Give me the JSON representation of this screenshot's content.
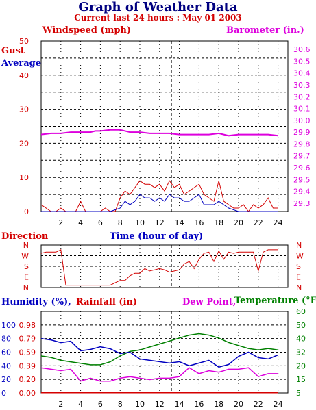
{
  "title": "Graph of Weather Data",
  "subtitle": "Current last 24 hours : May 01 2003",
  "colors": {
    "windspeed": "#d40000",
    "average": "#0000c0",
    "barometer": "#dd00dd",
    "direction": "#d40000",
    "humidity": "#0000c0",
    "rainfall": "#d40000",
    "dewpoint": "#dd00dd",
    "temperature": "#008000",
    "title": "#000080"
  },
  "chart_data": [
    {
      "type": "line",
      "name": "wind",
      "ylabel_left": "Windspeed (mph)",
      "ylabel_right": "Barometer (in.)",
      "legend_gust": "Gust",
      "legend_average": "Average",
      "xlabel": "Time (hour of day)",
      "x_ticks": [
        "2",
        "4",
        "6",
        "8",
        "10",
        "12",
        "14",
        "16",
        "18",
        "20",
        "22",
        "24"
      ],
      "xlim": [
        0,
        25
      ],
      "y_left_ticks": [
        "0",
        "10",
        "20",
        "30",
        "40",
        "50"
      ],
      "ylim_left": [
        0,
        50
      ],
      "y_right_ticks": [
        "29.3",
        "29.4",
        "29.5",
        "29.6",
        "29.7",
        "29.8",
        "29.9",
        "30.0",
        "30.1",
        "30.2",
        "30.3",
        "30.4",
        "30.5",
        "30.6"
      ],
      "ylim_right": [
        29.23,
        30.67
      ],
      "grid": true,
      "current_hour": 13.2,
      "barometer": {
        "x": [
          0,
          1,
          2,
          3,
          4,
          5,
          5.5,
          6,
          7,
          8,
          9,
          10,
          11,
          12,
          13,
          14,
          15,
          16,
          17,
          18,
          19,
          20,
          21,
          22,
          23,
          24
        ],
        "y": [
          29.88,
          29.89,
          29.89,
          29.9,
          29.9,
          29.9,
          29.91,
          29.91,
          29.92,
          29.92,
          29.9,
          29.9,
          29.89,
          29.89,
          29.89,
          29.88,
          29.88,
          29.88,
          29.88,
          29.89,
          29.87,
          29.88,
          29.88,
          29.88,
          29.88,
          29.87
        ]
      },
      "gust": {
        "x": [
          0,
          0.5,
          1,
          1.5,
          2,
          2.5,
          3,
          3.5,
          4,
          4.5,
          5,
          5.5,
          6,
          6.5,
          7,
          7.5,
          8,
          8.5,
          9,
          9.5,
          10,
          10.5,
          11,
          11.5,
          12,
          12.5,
          13,
          13.5,
          14,
          14.5,
          15,
          15.5,
          16,
          16.5,
          17,
          17.5,
          18,
          18.5,
          19,
          19.5,
          20,
          20.5,
          21,
          21.5,
          22,
          22.5,
          23,
          23.5,
          24
        ],
        "y": [
          2,
          1,
          0,
          0,
          1,
          0,
          0,
          0,
          3,
          0,
          0,
          0,
          0,
          1,
          0,
          0,
          4,
          6,
          5,
          7,
          9,
          8,
          8,
          7,
          8,
          6,
          9,
          7,
          8,
          5,
          6,
          7,
          8,
          5,
          4,
          3,
          9,
          3,
          2,
          1,
          1,
          2,
          0,
          2,
          1,
          2,
          4,
          1,
          1
        ]
      },
      "average": {
        "x": [
          0,
          1,
          2,
          3,
          4,
          5,
          6,
          7,
          8,
          8.5,
          9,
          9.5,
          10,
          10.5,
          11,
          11.5,
          12,
          12.5,
          13,
          13.5,
          14,
          14.5,
          15,
          15.5,
          16,
          16.5,
          17,
          17.5,
          18,
          19,
          20,
          21,
          22,
          23,
          24
        ],
        "y": [
          0,
          0,
          0,
          0,
          0,
          0,
          0,
          0,
          1,
          3,
          2,
          3,
          5,
          4,
          4,
          3,
          4,
          3,
          5,
          4,
          4,
          3,
          3,
          4,
          5,
          2,
          2,
          2,
          3,
          1,
          0,
          0,
          0,
          0,
          0
        ]
      }
    },
    {
      "type": "line",
      "name": "direction",
      "ylabel": "Direction",
      "y_ticks": [
        "N",
        "W",
        "S",
        "E",
        "N"
      ],
      "ylim": [
        0,
        360
      ],
      "grid": true,
      "x": [
        0,
        0.5,
        1,
        1.5,
        2,
        2.5,
        3,
        3.5,
        4,
        4.5,
        5,
        5.5,
        6,
        6.5,
        7,
        7.5,
        8,
        8.5,
        9,
        9.5,
        10,
        10.5,
        11,
        11.5,
        12,
        12.5,
        13,
        13.5,
        14,
        14.5,
        15,
        15.5,
        16,
        16.5,
        17,
        17.5,
        18,
        18.5,
        19,
        19.5,
        20,
        20.5,
        21,
        21.5,
        22,
        22.5,
        23,
        23.5,
        24
      ],
      "y": [
        290,
        300,
        300,
        300,
        320,
        20,
        20,
        20,
        20,
        20,
        20,
        20,
        20,
        20,
        20,
        40,
        60,
        60,
        100,
        120,
        120,
        160,
        140,
        150,
        160,
        150,
        130,
        140,
        150,
        200,
        220,
        160,
        240,
        290,
        300,
        220,
        310,
        240,
        300,
        290,
        300,
        300,
        300,
        300,
        140,
        300,
        320,
        320,
        320
      ]
    },
    {
      "type": "line",
      "name": "humidity_temperature",
      "ylabel_humidity": "Humidity (%),",
      "ylabel_rainfall": "Rainfall (in)",
      "ylabel_dewpoint": "Dew Point,",
      "ylabel_temperature": "Temperature (°F)",
      "humidity_ticks": [
        "0",
        "20",
        "40",
        "60",
        "80",
        "100"
      ],
      "rainfall_ticks": [
        "0.00",
        "0.20",
        "0.39",
        "0.59",
        "0.79",
        "0.98"
      ],
      "temperature_ticks": [
        "5",
        "15",
        "20",
        "32",
        "40",
        "50",
        "60"
      ],
      "temperature_ylim": [
        5,
        60
      ],
      "grid": true,
      "humidity": {
        "x": [
          0,
          1,
          2,
          3,
          4,
          5,
          6,
          7,
          8,
          9,
          10,
          11,
          12,
          13,
          14,
          15,
          16,
          17,
          18,
          19,
          20,
          21,
          22,
          23,
          24
        ],
        "y": [
          80,
          78,
          74,
          76,
          62,
          64,
          68,
          65,
          58,
          60,
          50,
          48,
          46,
          44,
          46,
          40,
          44,
          48,
          38,
          42,
          54,
          60,
          52,
          50,
          56
        ]
      },
      "temperature": {
        "x": [
          0,
          1,
          2,
          3,
          4,
          5,
          6,
          7,
          8,
          9,
          10,
          11,
          12,
          13,
          14,
          15,
          16,
          17,
          18,
          19,
          20,
          21,
          22,
          23,
          24
        ],
        "y": [
          30,
          29,
          27,
          26,
          25,
          24,
          24,
          26,
          30,
          33,
          34,
          36,
          38,
          40,
          42,
          44,
          45,
          44,
          42,
          39,
          37,
          35,
          34,
          35,
          34
        ]
      },
      "dewpoint": {
        "x": [
          0,
          1,
          2,
          3,
          4,
          5,
          6,
          7,
          8,
          9,
          10,
          11,
          12,
          13,
          14,
          15,
          16,
          17,
          18,
          19,
          20,
          21,
          22,
          23,
          24
        ],
        "y": [
          22,
          21,
          20,
          21,
          13,
          15,
          13,
          13,
          15,
          16,
          15,
          14,
          15,
          15,
          16,
          22,
          18,
          20,
          19,
          21,
          21,
          22,
          16,
          18,
          18
        ]
      },
      "rainfall": {
        "x": [
          0,
          24
        ],
        "y": [
          0,
          0
        ]
      }
    }
  ]
}
